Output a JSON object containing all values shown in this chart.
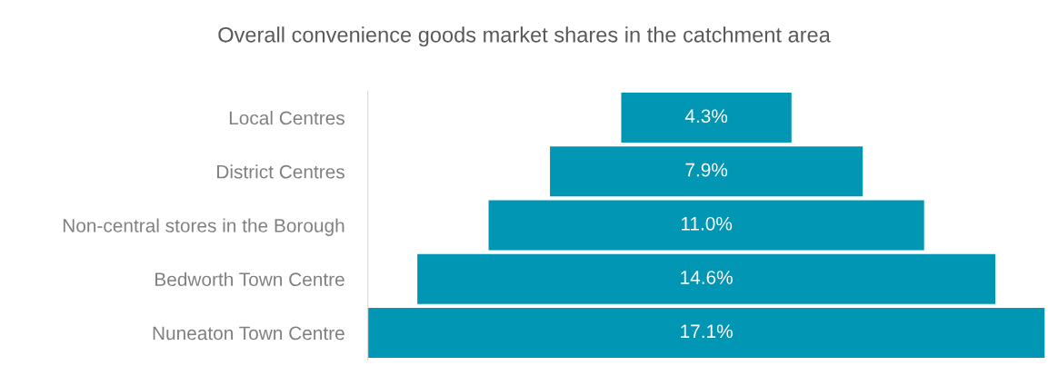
{
  "chart_data": {
    "type": "other",
    "title": "Overall convenience goods market shares in the catchment area",
    "categories": [
      "Local Centres",
      "District Centres",
      "Non-central stores in the Borough",
      "Bedworth Town Centre",
      "Nuneaton Town Centre"
    ],
    "values": [
      4.3,
      7.9,
      11.0,
      14.6,
      17.1
    ],
    "value_labels": [
      "4.3%",
      "7.9%",
      "11.0%",
      "14.6%",
      "17.1%"
    ],
    "color": "#0096b4"
  }
}
